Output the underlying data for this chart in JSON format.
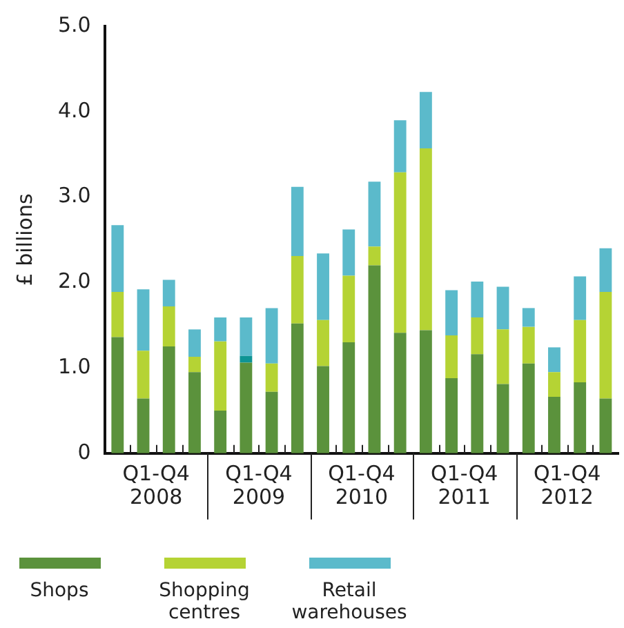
{
  "chart_data": {
    "type": "bar",
    "stacked": true,
    "ylabel": "£ billions",
    "categories": [
      null,
      null,
      null,
      null,
      null,
      null,
      null,
      null,
      null,
      null,
      null,
      null,
      null,
      null,
      null,
      null,
      null,
      null,
      null,
      null
    ],
    "series": [
      {
        "name": "Shops",
        "color": "#5b923c",
        "values": [
          1.36,
          0.64,
          1.25,
          0.95,
          0.5,
          1.06,
          0.72,
          1.52,
          1.02,
          1.3,
          2.2,
          1.41,
          1.44,
          0.88,
          1.16,
          0.81,
          1.05,
          0.66,
          0.83,
          0.64
        ]
      },
      {
        "name": "Shopping centres",
        "color": "#b5d334",
        "colors": [
          "#b5d334",
          "#b5d334",
          "#b5d334",
          "#b5d334",
          "#b5d334",
          "#0e9494",
          "#b5d334",
          "#b5d334",
          "#b5d334",
          "#b5d334",
          "#b5d334",
          "#b5d334",
          "#b5d334",
          "#b5d334",
          "#b5d334",
          "#b5d334",
          "#b5d334",
          "#b5d334",
          "#b5d334",
          "#b5d334"
        ],
        "values": [
          0.53,
          0.56,
          0.47,
          0.18,
          0.81,
          0.08,
          0.33,
          0.79,
          0.54,
          0.78,
          0.22,
          1.88,
          2.13,
          0.5,
          0.43,
          0.64,
          0.43,
          0.29,
          0.73,
          1.25
        ]
      },
      {
        "name": "Retail warehouses",
        "color": "#5bbacb",
        "values": [
          0.78,
          0.72,
          0.31,
          0.32,
          0.28,
          0.45,
          0.65,
          0.81,
          0.78,
          0.54,
          0.76,
          0.61,
          0.66,
          0.53,
          0.42,
          0.5,
          0.22,
          0.29,
          0.51,
          0.51
        ]
      }
    ],
    "ylim": [
      0,
      5
    ],
    "yticks": [
      0,
      {
        "value": 1,
        "label": "1.0"
      },
      {
        "value": 2,
        "label": "2.0"
      },
      {
        "value": 3,
        "label": "3.0"
      },
      {
        "value": 4,
        "label": "4.0"
      },
      {
        "value": 5,
        "label": "5.0"
      }
    ],
    "annotations": [
      "Q1-Q4 2008",
      "Q1-Q4 2009",
      "Q1-Q4 2010",
      "Q1-Q4 2011",
      "Q1-Q4 2012"
    ],
    "grid": false,
    "legend": "bottom"
  }
}
